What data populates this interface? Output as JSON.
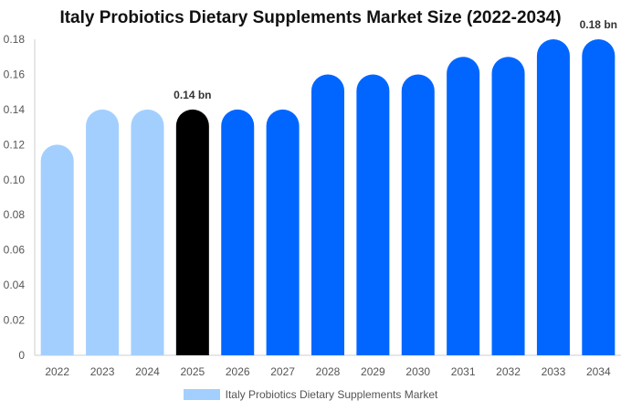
{
  "colors": {
    "historical": "#a3cfff",
    "current": "#000000",
    "forecast": "#0066ff",
    "axis": "#cccccc"
  },
  "chart_data": {
    "type": "bar",
    "title": "Italy Probiotics Dietary Supplements Market Size (2022-2034)",
    "xlabel": "",
    "ylabel": "",
    "categories": [
      "2022",
      "2023",
      "2024",
      "2025",
      "2026",
      "2027",
      "2028",
      "2029",
      "2030",
      "2031",
      "2032",
      "2033",
      "2034"
    ],
    "series": [
      {
        "name": "Italy Probiotics Dietary Supplements Market",
        "values": [
          0.12,
          0.14,
          0.14,
          0.14,
          0.14,
          0.14,
          0.16,
          0.16,
          0.16,
          0.17,
          0.17,
          0.18,
          0.18
        ]
      }
    ],
    "bar_color_groups": [
      "historical",
      "historical",
      "historical",
      "current",
      "forecast",
      "forecast",
      "forecast",
      "forecast",
      "forecast",
      "forecast",
      "forecast",
      "forecast",
      "forecast"
    ],
    "ylim": [
      0,
      0.18
    ],
    "yticks": [
      "0",
      "0.02",
      "0.04",
      "0.06",
      "0.08",
      "0.10",
      "0.12",
      "0.14",
      "0.16",
      "0.18"
    ],
    "ytick_values": [
      0,
      0.02,
      0.04,
      0.06,
      0.08,
      0.1,
      0.12,
      0.14,
      0.16,
      0.18
    ],
    "annotations": [
      {
        "category": "2025",
        "text": "0.14 bn"
      },
      {
        "category": "2034",
        "text": "0.18 bn"
      }
    ],
    "grid": false,
    "legend_position": "bottom-center"
  }
}
